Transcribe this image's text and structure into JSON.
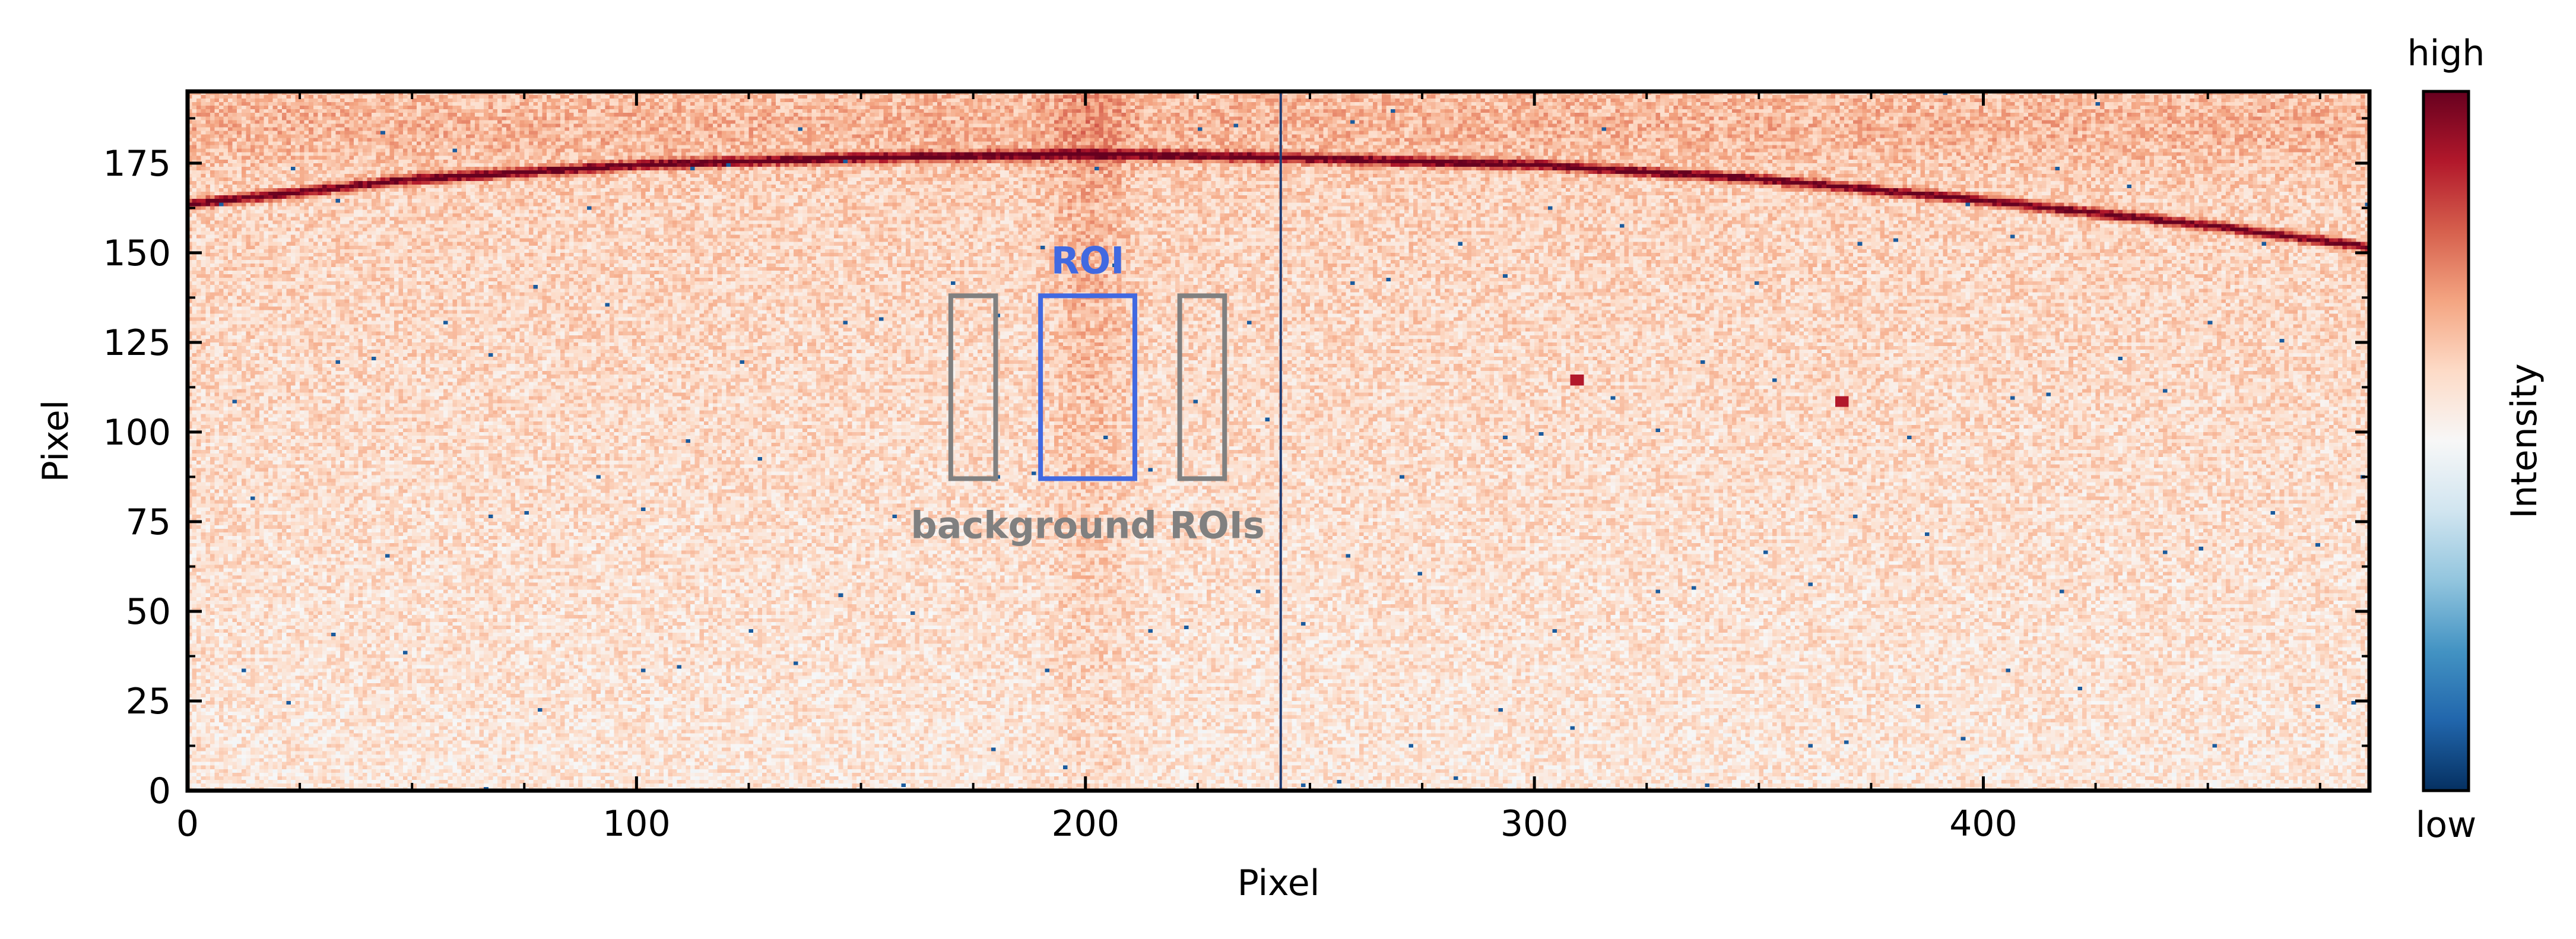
{
  "chart_data": {
    "type": "heatmap",
    "title": "",
    "xlabel": "Pixel",
    "ylabel": "Pixel",
    "xlim": [
      0,
      486
    ],
    "ylim": [
      0,
      195
    ],
    "xticks": [
      0,
      100,
      200,
      300,
      400
    ],
    "yticks": [
      0,
      25,
      50,
      75,
      100,
      125,
      150,
      175
    ],
    "x_minor_step": 25,
    "y_minor_step": 12.5,
    "colormap": "RdBu_r",
    "colorbar": {
      "label": "Intensity",
      "top_label": "high",
      "bottom_label": "low",
      "stops": [
        "#053061",
        "#2166ac",
        "#4393c3",
        "#92c5de",
        "#d1e5f0",
        "#f7f7f7",
        "#fddbc7",
        "#f4a582",
        "#d6604d",
        "#b2182b",
        "#67001f"
      ]
    },
    "ring": {
      "description_points": [
        [
          0,
          163
        ],
        [
          50,
          170
        ],
        [
          100,
          174
        ],
        [
          150,
          176
        ],
        [
          200,
          177
        ],
        [
          244,
          176
        ],
        [
          300,
          174
        ],
        [
          350,
          170
        ],
        [
          400,
          164
        ],
        [
          450,
          157
        ],
        [
          486,
          151
        ]
      ],
      "color": "#7a0a1c"
    },
    "vertical_line": {
      "x": 243.5,
      "color": "#1f3b73"
    },
    "roi": {
      "label": "ROI",
      "x": [
        190,
        211
      ],
      "y": [
        87,
        138
      ],
      "color": "#4169e1"
    },
    "background_rois": {
      "label": "background ROIs",
      "boxes": [
        {
          "x": [
            170,
            180
          ],
          "y": [
            87,
            138
          ]
        },
        {
          "x": [
            221,
            231
          ],
          "y": [
            87,
            138
          ]
        }
      ],
      "color": "#808080"
    },
    "hot_spots": [
      [
        309,
        114
      ],
      [
        368,
        108
      ]
    ],
    "grid": false
  }
}
